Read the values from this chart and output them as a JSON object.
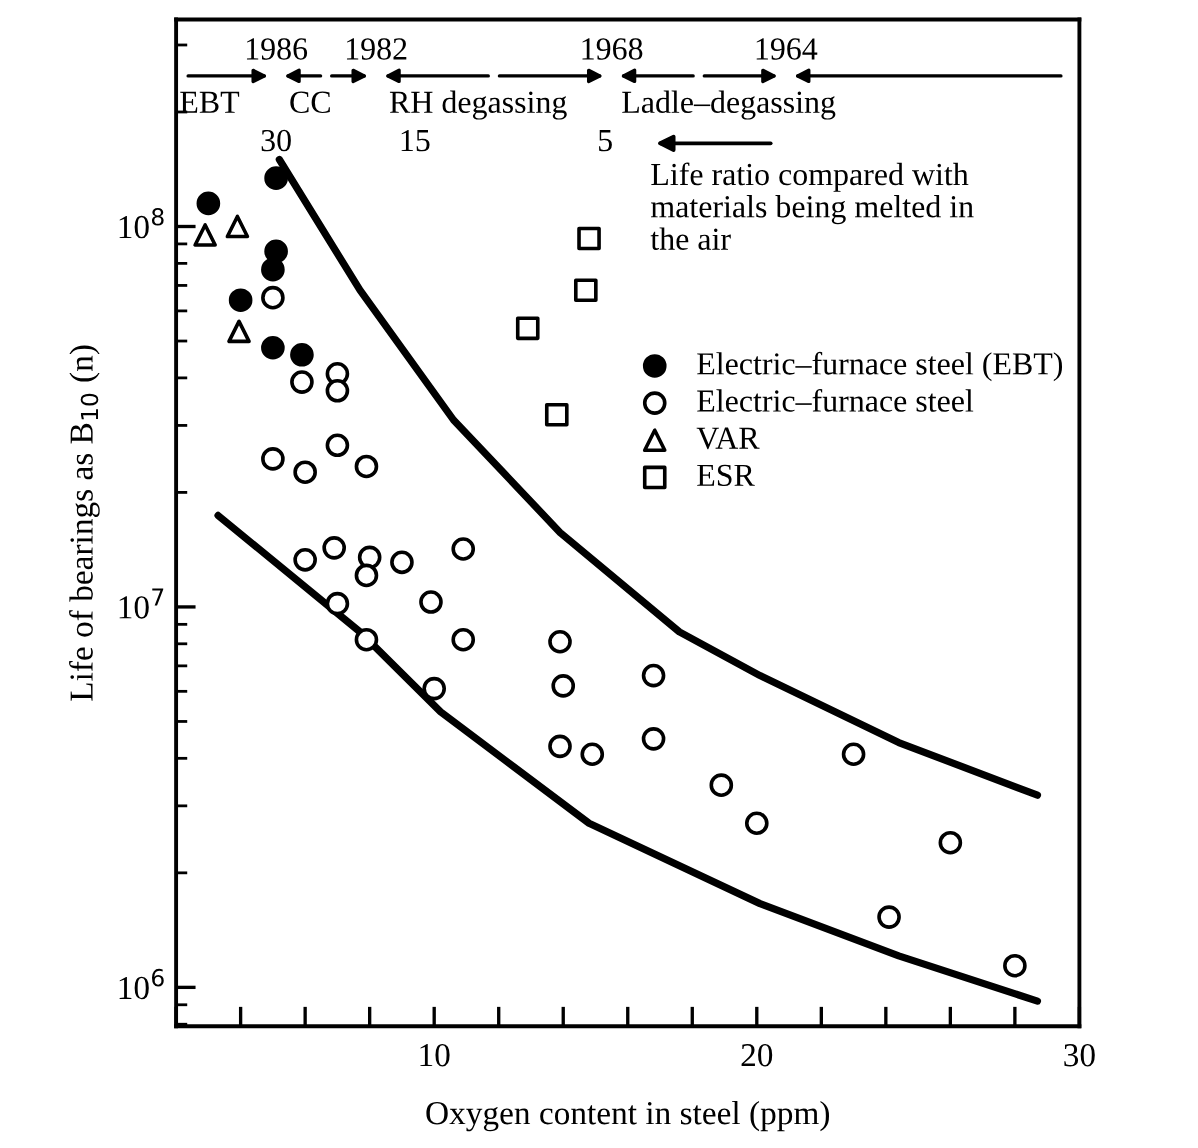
{
  "chart_data": {
    "type": "scatter",
    "xlabel": "Oxygen content in steel (ppm)",
    "ylabel": "Life of bearings as B$_{10}$ (n)",
    "log": "y",
    "xlim": [
      2,
      30
    ],
    "ylim": [
      790000,
      350000000
    ],
    "xticks": [
      {
        "value": 2,
        "label": null
      },
      {
        "value": 4,
        "label": null
      },
      {
        "value": 6,
        "label": null
      },
      {
        "value": 8,
        "label": null
      },
      10,
      {
        "value": 12,
        "label": null
      },
      {
        "value": 14,
        "label": null
      },
      {
        "value": 16,
        "label": null
      },
      {
        "value": 18,
        "label": null
      },
      20,
      {
        "value": 22,
        "label": null
      },
      {
        "value": 24,
        "label": null
      },
      {
        "value": 26,
        "label": null
      },
      {
        "value": 28,
        "label": null
      },
      30
    ],
    "yticks": [
      {
        "value": 1000000,
        "label": "10$^{6}$"
      },
      {
        "value": 10000000,
        "label": "10$^{7}$"
      },
      {
        "value": 100000000,
        "label": "10$^{8}$"
      }
    ],
    "grid": false,
    "legend": "right",
    "series": [
      {
        "name": "Electric–furnace steel (EBT)",
        "marker": "circle",
        "color": "#000000",
        "x": [
          3.0,
          5.1,
          5.1,
          5.0,
          4.0,
          5.0,
          5.9
        ],
        "values": [
          115000000,
          134000000,
          86000000,
          77000000,
          64000000,
          48000000,
          46000000
        ]
      },
      {
        "name": "Electric–furnace steel",
        "marker": "circle",
        "color": "#ffffff",
        "x": [
          5.0,
          5.9,
          7.0,
          7.0,
          5.0,
          6.0,
          7.0,
          7.9,
          6.0,
          6.9,
          8.0,
          7.9,
          9.0,
          10.9,
          7.0,
          9.9,
          7.9,
          10.9,
          13.9,
          10.0,
          14.0,
          16.8,
          13.9,
          14.9,
          16.8,
          18.9,
          20.0,
          23.0,
          26.0,
          24.1,
          28.0
        ],
        "values": [
          65000000,
          39000000,
          41000000,
          37000000,
          24500000,
          22600000,
          26600000,
          23400000,
          13300000,
          14300000,
          13500000,
          12100000,
          13100000,
          14200000,
          10200000,
          10300000,
          8200000,
          8200000,
          8100000,
          6100000,
          6200000,
          6600000,
          4300000,
          4100000,
          4500000,
          3400000,
          2700000,
          4100000,
          2400000,
          1530000,
          1140000
        ]
      },
      {
        "name": "VAR",
        "marker": "triangle",
        "color": "#ffffff",
        "x": [
          2.9,
          3.9,
          3.95
        ],
        "values": [
          95000000,
          100000000,
          53000000
        ]
      },
      {
        "name": "ESR",
        "marker": "square",
        "color": "#ffffff",
        "x": [
          14.8,
          14.7,
          12.9,
          13.8
        ],
        "values": [
          93000000,
          68000000,
          54000000,
          32000000
        ]
      },
      {
        "type": "line",
        "color": "#000000",
        "line_style": "solid",
        "marker": "none",
        "x": [
          5.2,
          7.7,
          10.6,
          13.9,
          17.6,
          20.1,
          24.4,
          28.7
        ],
        "values": [
          150000000,
          68000000,
          31000000,
          15700000,
          8600000,
          6600000,
          4400000,
          3200000
        ]
      },
      {
        "type": "line",
        "color": "#000000",
        "line_style": "solid",
        "marker": "none",
        "x": [
          3.3,
          7.7,
          10.2,
          14.8,
          20.1,
          24.4,
          28.7
        ],
        "values": [
          17400000,
          8600000,
          5300000,
          2700000,
          1660000,
          1210000,
          920000
        ]
      }
    ],
    "annotations": [
      "1986",
      "1982",
      "1968",
      "1964",
      "EBT",
      "CC",
      "RH degassing",
      "Ladle–degassing",
      "30",
      "15",
      "5",
      "Life ratio compared with\nmaterials being melted in\nthe air"
    ]
  }
}
